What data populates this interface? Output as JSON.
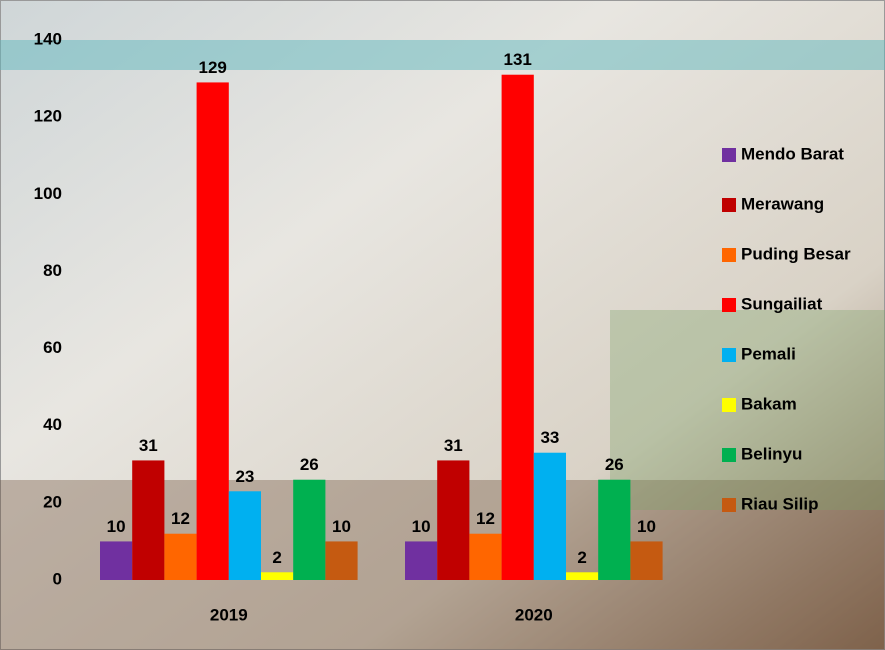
{
  "chart_data": {
    "type": "bar",
    "categories": [
      "2019",
      "2020"
    ],
    "series": [
      {
        "name": "Mendo Barat",
        "color": "#7030a0",
        "values": [
          10,
          10
        ]
      },
      {
        "name": "Merawang",
        "color": "#c00000",
        "values": [
          31,
          31
        ]
      },
      {
        "name": "Puding Besar",
        "color": "#ff6600",
        "values": [
          12,
          12
        ]
      },
      {
        "name": "Sungailiat",
        "color": "#ff0000",
        "values": [
          129,
          131
        ]
      },
      {
        "name": "Pemali",
        "color": "#00b0f0",
        "values": [
          23,
          33
        ]
      },
      {
        "name": "Bakam",
        "color": "#ffff00",
        "values": [
          2,
          2
        ]
      },
      {
        "name": "Belinyu",
        "color": "#00b050",
        "values": [
          26,
          26
        ]
      },
      {
        "name": "Riau Silip",
        "color": "#c55a11",
        "values": [
          10,
          10
        ]
      }
    ],
    "ylim": [
      0,
      140
    ],
    "yticks": [
      0,
      20,
      40,
      60,
      80,
      100,
      120,
      140
    ],
    "grid": false,
    "legend": "right"
  }
}
